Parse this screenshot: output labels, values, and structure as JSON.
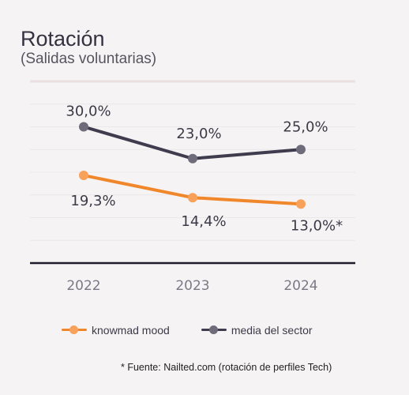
{
  "colors": {
    "knowmad": "#f0872b",
    "knowmad_marker": "#f7a15a",
    "sector": "#3f3c4e",
    "sector_marker": "#6e6c7a"
  },
  "chart_data": {
    "type": "line",
    "title": "Rotación",
    "subtitle": "(Salidas voluntarias)",
    "categories": [
      "2022",
      "2023",
      "2024"
    ],
    "series": [
      {
        "name": "knowmad mood",
        "values": [
          19.3,
          14.4,
          13.0
        ],
        "labels": [
          "19,3%",
          "14,4%",
          "13,0%*"
        ],
        "color": "#f0872b"
      },
      {
        "name": "media del sector",
        "values": [
          30.0,
          23.0,
          25.0
        ],
        "labels": [
          "30,0%",
          "23,0%",
          "25,0%"
        ],
        "color": "#3f3c4e"
      }
    ],
    "ylim": [
      0,
      40
    ],
    "grid": true,
    "legend_position": "bottom"
  },
  "footnote": "* Fuente: Nailted.com (rotación de perfiles Tech)"
}
